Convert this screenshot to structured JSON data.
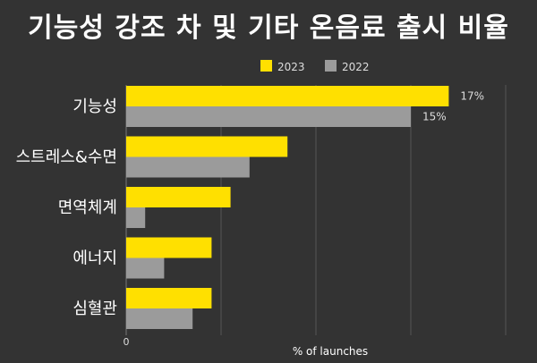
{
  "chart_data": {
    "type": "bar",
    "orientation": "horizontal",
    "title": "기능성 강조 차 및 기타 온음료 출시 비율",
    "categories": [
      "기능성",
      "스트레스&수면",
      "면역체계",
      "에너지",
      "심혈관"
    ],
    "series": [
      {
        "name": "2023",
        "values": [
          17,
          8.5,
          5.5,
          4.5,
          4.5
        ],
        "color": "#FFE000"
      },
      {
        "name": "2022",
        "values": [
          15,
          6.5,
          1,
          2,
          3.5
        ],
        "color": "#9B9B9B"
      }
    ],
    "data_labels": [
      {
        "series": "2023",
        "category": "기능성",
        "text": "17%"
      },
      {
        "series": "2022",
        "category": "기능성",
        "text": "15%"
      }
    ],
    "xlabel": "% of launches",
    "x_tick_labels": [
      "0"
    ],
    "xlim": [
      0,
      20
    ],
    "grid": true,
    "legend_position": "top"
  },
  "colors": {
    "background": "#333333",
    "grid": "#555555"
  }
}
